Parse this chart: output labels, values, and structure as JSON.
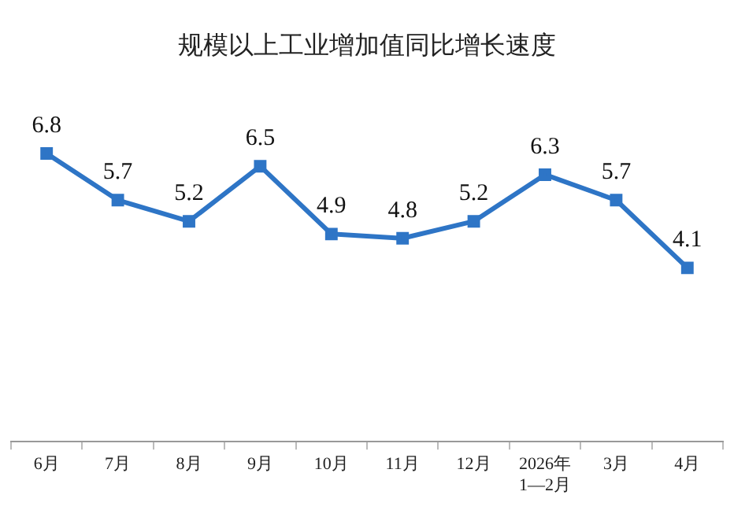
{
  "chart_data": {
    "type": "line",
    "title": "规模以上工业增加值同比增长速度",
    "categories": [
      "6月",
      "7月",
      "8月",
      "9月",
      "10月",
      "11月",
      "12月",
      "2026年\n1—2月",
      "3月",
      "4月"
    ],
    "series": [
      {
        "color": "#2e75c6",
        "values": [
          6.8,
          5.7,
          5.2,
          6.5,
          4.9,
          4.8,
          5.2,
          6.3,
          5.7,
          4.1
        ]
      }
    ],
    "tick_labels": "x",
    "data_labels": true,
    "marker": "square",
    "line_style": "solid",
    "grid": false,
    "legend": false
  }
}
